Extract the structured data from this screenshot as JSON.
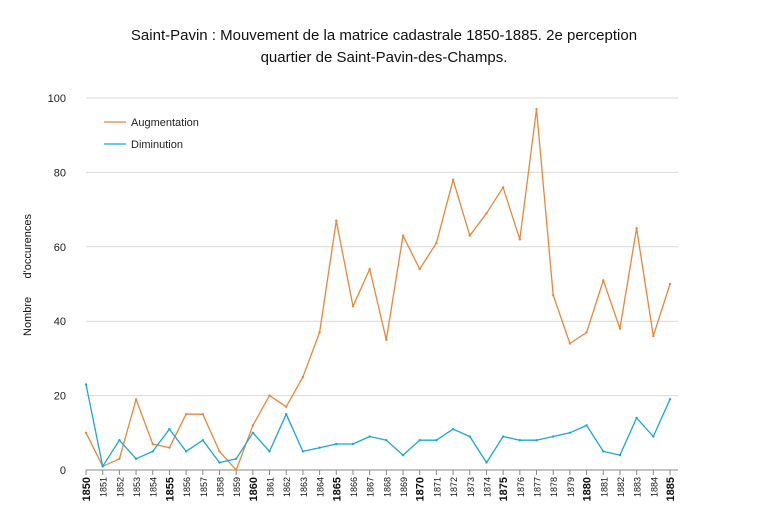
{
  "chart_data": {
    "type": "line",
    "title_line1": "Saint-Pavin : Mouvement de la matrice cadastrale 1850-1885. 2e perception",
    "title_line2": "quartier de Saint-Pavin-des-Champs.",
    "ylabel": "Nombre      d'occurences",
    "xlabel": "",
    "ylim": [
      0,
      100
    ],
    "yticks": [
      0,
      20,
      40,
      60,
      80,
      100
    ],
    "grid": true,
    "legend_position": "top-left",
    "x": [
      "1850",
      "1851",
      "1852",
      "1853",
      "1854",
      "1855",
      "1856",
      "1857",
      "1858",
      "1859",
      "1860",
      "1861",
      "1862",
      "1863",
      "1864",
      "1865",
      "1866",
      "1867",
      "1868",
      "1869",
      "1870",
      "1871",
      "1872",
      "1873",
      "1874",
      "1875",
      "1876",
      "1877",
      "1878",
      "1879",
      "1880",
      "1881",
      "1882",
      "1883",
      "1884",
      "1885"
    ],
    "bold_ticks": [
      "1850",
      "1855",
      "1860",
      "1865",
      "1870",
      "1875",
      "1880",
      "1885"
    ],
    "series": [
      {
        "name": "Augmentation",
        "color": "#E8883A",
        "values": [
          10,
          1,
          3,
          19,
          7,
          6,
          15,
          15,
          5,
          0,
          12,
          20,
          17,
          25,
          37,
          67,
          44,
          54,
          35,
          63,
          54,
          61,
          78,
          63,
          69,
          76,
          62,
          97,
          47,
          34,
          37,
          51,
          38,
          65,
          36,
          50
        ]
      },
      {
        "name": "Diminution",
        "color": "#1AA7D9",
        "values": [
          23,
          1,
          8,
          3,
          5,
          11,
          5,
          8,
          2,
          3,
          10,
          5,
          15,
          5,
          6,
          7,
          7,
          9,
          8,
          4,
          8,
          8,
          11,
          9,
          2,
          9,
          8,
          8,
          9,
          10,
          12,
          5,
          4,
          14,
          9,
          19
        ]
      }
    ]
  }
}
